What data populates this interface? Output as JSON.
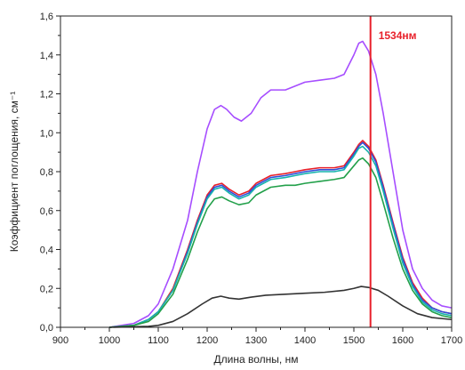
{
  "chart_data": {
    "type": "line",
    "title": "",
    "xlabel": "Длина волны, нм",
    "ylabel": "Коэффициент поглощения, см⁻¹",
    "xlim": [
      900,
      1700
    ],
    "ylim": [
      0,
      1.6
    ],
    "x_ticks": [
      "900",
      "1000",
      "1100",
      "1200",
      "1300",
      "1400",
      "1500",
      "1600",
      "1700"
    ],
    "y_ticks": [
      "0,0",
      "0,2",
      "0,4",
      "0,6",
      "0,8",
      "1,0",
      "1,2",
      "1,4",
      "1,6"
    ],
    "grid": false,
    "legend": "none",
    "marker_line": {
      "x": 1534,
      "label": "1534нм",
      "color": "#e8202a"
    },
    "series": [
      {
        "color": "#a64dff",
        "points": [
          [
            1000,
            0
          ],
          [
            1050,
            0.02
          ],
          [
            1080,
            0.06
          ],
          [
            1100,
            0.12
          ],
          [
            1130,
            0.3
          ],
          [
            1160,
            0.55
          ],
          [
            1180,
            0.8
          ],
          [
            1200,
            1.02
          ],
          [
            1215,
            1.12
          ],
          [
            1228,
            1.14
          ],
          [
            1240,
            1.12
          ],
          [
            1255,
            1.08
          ],
          [
            1270,
            1.06
          ],
          [
            1290,
            1.1
          ],
          [
            1310,
            1.18
          ],
          [
            1330,
            1.22
          ],
          [
            1360,
            1.22
          ],
          [
            1380,
            1.24
          ],
          [
            1400,
            1.26
          ],
          [
            1430,
            1.27
          ],
          [
            1460,
            1.28
          ],
          [
            1480,
            1.3
          ],
          [
            1500,
            1.4
          ],
          [
            1510,
            1.46
          ],
          [
            1518,
            1.47
          ],
          [
            1530,
            1.42
          ],
          [
            1545,
            1.3
          ],
          [
            1560,
            1.1
          ],
          [
            1580,
            0.8
          ],
          [
            1600,
            0.5
          ],
          [
            1620,
            0.3
          ],
          [
            1640,
            0.2
          ],
          [
            1660,
            0.14
          ],
          [
            1680,
            0.11
          ],
          [
            1700,
            0.1
          ]
        ]
      },
      {
        "color": "#e8202a",
        "points": [
          [
            1000,
            0
          ],
          [
            1050,
            0.01
          ],
          [
            1080,
            0.04
          ],
          [
            1100,
            0.08
          ],
          [
            1130,
            0.2
          ],
          [
            1160,
            0.4
          ],
          [
            1180,
            0.55
          ],
          [
            1200,
            0.68
          ],
          [
            1215,
            0.73
          ],
          [
            1230,
            0.74
          ],
          [
            1245,
            0.71
          ],
          [
            1265,
            0.68
          ],
          [
            1285,
            0.7
          ],
          [
            1300,
            0.74
          ],
          [
            1330,
            0.78
          ],
          [
            1360,
            0.79
          ],
          [
            1380,
            0.8
          ],
          [
            1400,
            0.81
          ],
          [
            1430,
            0.82
          ],
          [
            1460,
            0.82
          ],
          [
            1480,
            0.83
          ],
          [
            1500,
            0.9
          ],
          [
            1510,
            0.94
          ],
          [
            1518,
            0.96
          ],
          [
            1530,
            0.93
          ],
          [
            1545,
            0.86
          ],
          [
            1560,
            0.73
          ],
          [
            1580,
            0.54
          ],
          [
            1600,
            0.36
          ],
          [
            1620,
            0.23
          ],
          [
            1640,
            0.15
          ],
          [
            1660,
            0.1
          ],
          [
            1680,
            0.08
          ],
          [
            1700,
            0.07
          ]
        ]
      },
      {
        "color": "#2f4fd8",
        "points": [
          [
            1000,
            0
          ],
          [
            1050,
            0.01
          ],
          [
            1080,
            0.04
          ],
          [
            1100,
            0.08
          ],
          [
            1130,
            0.19
          ],
          [
            1160,
            0.39
          ],
          [
            1180,
            0.54
          ],
          [
            1200,
            0.67
          ],
          [
            1215,
            0.72
          ],
          [
            1230,
            0.73
          ],
          [
            1245,
            0.7
          ],
          [
            1265,
            0.67
          ],
          [
            1285,
            0.69
          ],
          [
            1300,
            0.73
          ],
          [
            1330,
            0.77
          ],
          [
            1360,
            0.78
          ],
          [
            1380,
            0.79
          ],
          [
            1400,
            0.8
          ],
          [
            1430,
            0.81
          ],
          [
            1460,
            0.81
          ],
          [
            1480,
            0.82
          ],
          [
            1500,
            0.89
          ],
          [
            1510,
            0.93
          ],
          [
            1518,
            0.95
          ],
          [
            1530,
            0.92
          ],
          [
            1545,
            0.85
          ],
          [
            1560,
            0.72
          ],
          [
            1580,
            0.53
          ],
          [
            1600,
            0.35
          ],
          [
            1620,
            0.22
          ],
          [
            1640,
            0.14
          ],
          [
            1660,
            0.1
          ],
          [
            1680,
            0.08
          ],
          [
            1700,
            0.07
          ]
        ]
      },
      {
        "color": "#17b3ad",
        "points": [
          [
            1000,
            0
          ],
          [
            1050,
            0.01
          ],
          [
            1080,
            0.04
          ],
          [
            1100,
            0.08
          ],
          [
            1130,
            0.19
          ],
          [
            1160,
            0.38
          ],
          [
            1180,
            0.53
          ],
          [
            1200,
            0.66
          ],
          [
            1215,
            0.71
          ],
          [
            1230,
            0.72
          ],
          [
            1245,
            0.69
          ],
          [
            1265,
            0.66
          ],
          [
            1285,
            0.68
          ],
          [
            1300,
            0.72
          ],
          [
            1330,
            0.76
          ],
          [
            1360,
            0.77
          ],
          [
            1380,
            0.78
          ],
          [
            1400,
            0.79
          ],
          [
            1430,
            0.8
          ],
          [
            1460,
            0.8
          ],
          [
            1480,
            0.81
          ],
          [
            1500,
            0.88
          ],
          [
            1510,
            0.92
          ],
          [
            1518,
            0.93
          ],
          [
            1530,
            0.9
          ],
          [
            1545,
            0.83
          ],
          [
            1560,
            0.7
          ],
          [
            1580,
            0.51
          ],
          [
            1600,
            0.33
          ],
          [
            1620,
            0.21
          ],
          [
            1640,
            0.13
          ],
          [
            1660,
            0.09
          ],
          [
            1680,
            0.07
          ],
          [
            1700,
            0.06
          ]
        ]
      },
      {
        "color": "#22a04a",
        "points": [
          [
            1000,
            0
          ],
          [
            1050,
            0.01
          ],
          [
            1080,
            0.03
          ],
          [
            1100,
            0.07
          ],
          [
            1130,
            0.17
          ],
          [
            1160,
            0.35
          ],
          [
            1180,
            0.49
          ],
          [
            1200,
            0.61
          ],
          [
            1215,
            0.66
          ],
          [
            1230,
            0.67
          ],
          [
            1245,
            0.65
          ],
          [
            1265,
            0.63
          ],
          [
            1285,
            0.64
          ],
          [
            1300,
            0.68
          ],
          [
            1330,
            0.72
          ],
          [
            1360,
            0.73
          ],
          [
            1380,
            0.73
          ],
          [
            1400,
            0.74
          ],
          [
            1430,
            0.75
          ],
          [
            1460,
            0.76
          ],
          [
            1480,
            0.77
          ],
          [
            1500,
            0.83
          ],
          [
            1510,
            0.86
          ],
          [
            1518,
            0.87
          ],
          [
            1530,
            0.84
          ],
          [
            1545,
            0.77
          ],
          [
            1560,
            0.64
          ],
          [
            1580,
            0.46
          ],
          [
            1600,
            0.3
          ],
          [
            1620,
            0.19
          ],
          [
            1640,
            0.12
          ],
          [
            1660,
            0.08
          ],
          [
            1680,
            0.06
          ],
          [
            1700,
            0.05
          ]
        ]
      },
      {
        "color": "#333333",
        "points": [
          [
            1000,
            0
          ],
          [
            1080,
            0.005
          ],
          [
            1100,
            0.01
          ],
          [
            1130,
            0.03
          ],
          [
            1160,
            0.07
          ],
          [
            1190,
            0.12
          ],
          [
            1210,
            0.15
          ],
          [
            1228,
            0.16
          ],
          [
            1245,
            0.15
          ],
          [
            1265,
            0.145
          ],
          [
            1290,
            0.155
          ],
          [
            1320,
            0.165
          ],
          [
            1360,
            0.17
          ],
          [
            1400,
            0.175
          ],
          [
            1440,
            0.18
          ],
          [
            1480,
            0.19
          ],
          [
            1500,
            0.2
          ],
          [
            1515,
            0.21
          ],
          [
            1530,
            0.205
          ],
          [
            1550,
            0.19
          ],
          [
            1570,
            0.16
          ],
          [
            1600,
            0.11
          ],
          [
            1630,
            0.07
          ],
          [
            1660,
            0.05
          ],
          [
            1700,
            0.04
          ]
        ]
      }
    ]
  }
}
